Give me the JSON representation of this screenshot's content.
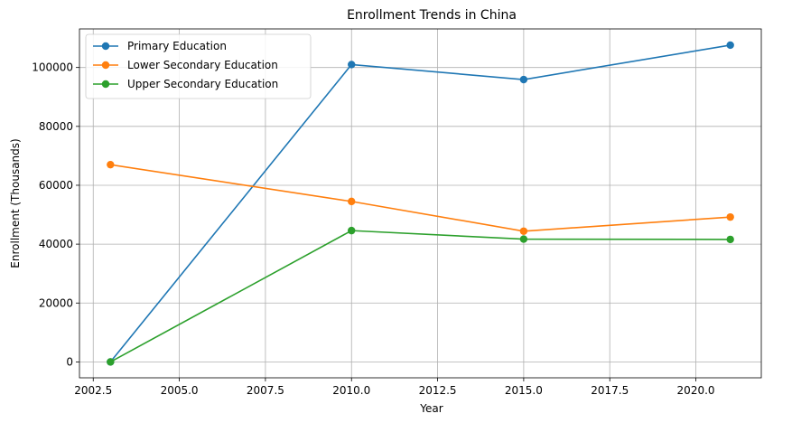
{
  "chart_data": {
    "type": "line",
    "title": "Enrollment Trends in China",
    "xlabel": "Year",
    "ylabel": "Enrollment (Thousands)",
    "x": [
      2003,
      2010,
      2015,
      2021
    ],
    "xlim": [
      2002.1,
      2021.9
    ],
    "ylim": [
      -5400,
      113100
    ],
    "xticks": [
      2002.5,
      2005.0,
      2007.5,
      2010.0,
      2012.5,
      2015.0,
      2017.5,
      2020.0
    ],
    "xtick_labels": [
      "2002.5",
      "2005.0",
      "2007.5",
      "2010.0",
      "2012.5",
      "2015.0",
      "2017.5",
      "2020.0"
    ],
    "yticks": [
      0,
      20000,
      40000,
      60000,
      80000,
      100000
    ],
    "ytick_labels": [
      "0",
      "20000",
      "40000",
      "60000",
      "80000",
      "100000"
    ],
    "grid": true,
    "legend_position": "top-left",
    "series": [
      {
        "name": "Primary Education",
        "color": "#1f77b4",
        "values": [
          0,
          101000,
          95900,
          107600
        ]
      },
      {
        "name": "Lower Secondary Education",
        "color": "#ff7f0e",
        "values": [
          67000,
          54500,
          44400,
          49200
        ]
      },
      {
        "name": "Upper Secondary Education",
        "color": "#2ca02c",
        "values": [
          0,
          44600,
          41700,
          41600
        ]
      }
    ]
  }
}
